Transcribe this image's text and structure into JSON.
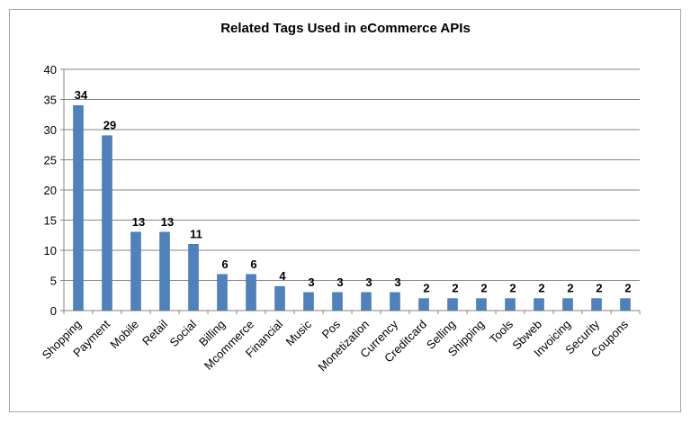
{
  "chart_data": {
    "type": "bar",
    "title": "Related Tags Used in eCommerce APIs",
    "xlabel": "",
    "ylabel": "",
    "categories": [
      "Shopping",
      "Payment",
      "Mobile",
      "Retail",
      "Social",
      "Billing",
      "Mcommerce",
      "Financial",
      "Music",
      "Pos",
      "Monetization",
      "Currency",
      "Creditcard",
      "Selling",
      "Shipping",
      "Tools",
      "Sbweb",
      "Invoicing",
      "Security",
      "Coupons"
    ],
    "values": [
      34,
      29,
      13,
      13,
      11,
      6,
      6,
      4,
      3,
      3,
      3,
      3,
      2,
      2,
      2,
      2,
      2,
      2,
      2,
      2
    ],
    "ylim": [
      0,
      40
    ],
    "yticks": [
      0,
      5,
      10,
      15,
      20,
      25,
      30,
      35,
      40
    ],
    "grid": true,
    "data_labels": true,
    "legend": "none",
    "colors": {
      "bar": "#4f81bd",
      "bar_edge": "#3a6aa3",
      "grid": "#868686",
      "axis": "#868686",
      "text": "#000000"
    }
  }
}
